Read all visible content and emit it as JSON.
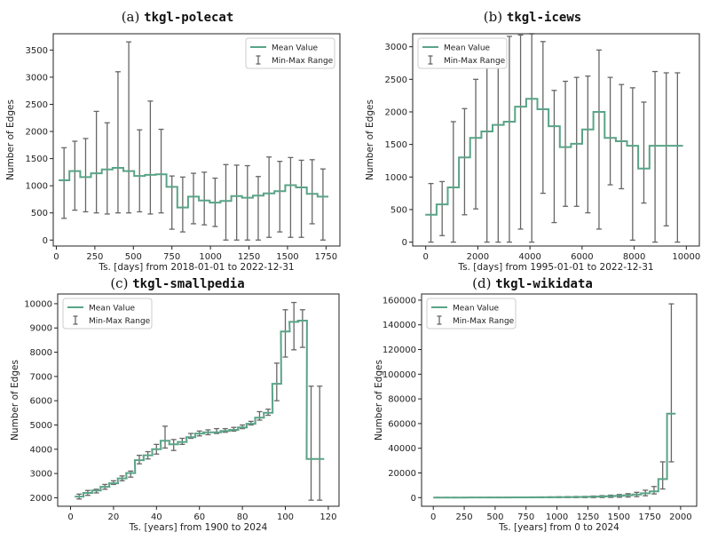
{
  "chart_data": [
    {
      "type": "line",
      "panel_label": "(a)",
      "title": "tkgl-polecat",
      "xlabel": "Ts. [days] from 2018-01-01 to 2022-12-31",
      "ylabel": "Number of Edges",
      "xlim": [
        -20,
        1840
      ],
      "ylim": [
        -110,
        3800
      ],
      "xticks": [
        0,
        250,
        500,
        750,
        1000,
        1250,
        1500,
        1750
      ],
      "yticks": [
        0,
        500,
        1000,
        1500,
        2000,
        2500,
        3000,
        3500
      ],
      "legend": [
        "Mean Value",
        "Min-Max Range"
      ],
      "legend_position": "top-right",
      "step_width": 70,
      "series": [
        {
          "name": "Mean Value",
          "x": [
            50,
            120,
            190,
            260,
            330,
            400,
            470,
            540,
            610,
            680,
            750,
            820,
            890,
            960,
            1030,
            1100,
            1170,
            1240,
            1310,
            1380,
            1450,
            1520,
            1590,
            1660,
            1730
          ],
          "values": [
            1100,
            1270,
            1160,
            1230,
            1300,
            1330,
            1270,
            1180,
            1200,
            1210,
            980,
            600,
            800,
            730,
            690,
            720,
            810,
            780,
            820,
            860,
            900,
            1010,
            970,
            850,
            800
          ]
        },
        {
          "name": "Min-Max Range",
          "x": [
            50,
            120,
            190,
            260,
            330,
            400,
            470,
            540,
            610,
            680,
            750,
            820,
            890,
            960,
            1030,
            1100,
            1170,
            1240,
            1310,
            1380,
            1450,
            1520,
            1590,
            1660,
            1730
          ],
          "min": [
            400,
            550,
            520,
            500,
            480,
            500,
            500,
            520,
            480,
            500,
            200,
            150,
            300,
            280,
            250,
            0,
            0,
            0,
            0,
            50,
            150,
            50,
            50,
            300,
            0
          ],
          "max": [
            1700,
            1820,
            1870,
            2370,
            2160,
            3100,
            3650,
            2030,
            2560,
            2040,
            1180,
            1160,
            1230,
            1250,
            1140,
            1390,
            1380,
            1370,
            1170,
            1530,
            1450,
            1520,
            1470,
            1480,
            1310
          ]
        }
      ]
    },
    {
      "type": "line",
      "panel_label": "(b)",
      "title": "tkgl-icews",
      "xlabel": "Ts. [days] from 1995-01-01 to 2022-12-31",
      "ylabel": "Number of Edges",
      "xlim": [
        -500,
        10500
      ],
      "ylim": [
        -60,
        3200
      ],
      "xticks": [
        0,
        2000,
        4000,
        6000,
        8000,
        10000
      ],
      "yticks": [
        0,
        500,
        1000,
        1500,
        2000,
        2500,
        3000
      ],
      "legend": [
        "Mean Value",
        "Min-Max Range"
      ],
      "legend_position": "top-left",
      "step_width": 430,
      "series": [
        {
          "name": "Mean Value",
          "x": [
            200,
            630,
            1060,
            1490,
            1920,
            2350,
            2780,
            3210,
            3640,
            4070,
            4500,
            4930,
            5360,
            5790,
            6220,
            6650,
            7080,
            7510,
            7940,
            8370,
            8800,
            9230,
            9660
          ],
          "values": [
            420,
            580,
            840,
            1300,
            1600,
            1700,
            1800,
            1850,
            2080,
            2200,
            2040,
            1780,
            1460,
            1510,
            1730,
            2000,
            1600,
            1550,
            1480,
            1130,
            1480,
            1480,
            1480
          ]
        },
        {
          "name": "Min-Max Range",
          "x": [
            200,
            630,
            1060,
            1490,
            1920,
            2350,
            2780,
            3210,
            3640,
            4070,
            4500,
            4930,
            5360,
            5790,
            6220,
            6650,
            7080,
            7510,
            7940,
            8370,
            8800,
            9230,
            9660
          ],
          "min": [
            0,
            100,
            0,
            420,
            510,
            0,
            0,
            0,
            200,
            0,
            750,
            300,
            550,
            550,
            450,
            200,
            880,
            820,
            30,
            600,
            0,
            250,
            0
          ],
          "max": [
            900,
            930,
            1850,
            2050,
            2500,
            2670,
            3000,
            3160,
            3180,
            3200,
            3080,
            2330,
            2470,
            2530,
            2550,
            2950,
            2530,
            2420,
            2370,
            2150,
            2620,
            2600,
            2600
          ]
        }
      ]
    },
    {
      "type": "line",
      "panel_label": "(c)",
      "title": "tkgl-smallpedia",
      "xlabel": "Ts. [years] from 1900 to 2024",
      "ylabel": "Number of Edges",
      "xlim": [
        -6,
        125
      ],
      "ylim": [
        1650,
        10400
      ],
      "xticks": [
        0,
        20,
        40,
        60,
        80,
        100,
        120
      ],
      "yticks": [
        2000,
        3000,
        4000,
        5000,
        6000,
        7000,
        8000,
        9000,
        10000
      ],
      "legend": [
        "Mean Value",
        "Min-Max Range"
      ],
      "legend_position": "top-left",
      "step_width": 4.17,
      "series": [
        {
          "name": "Mean Value",
          "x": [
            4,
            8,
            12,
            16,
            20,
            24,
            28,
            32,
            36,
            40,
            44,
            48,
            52,
            56,
            60,
            64,
            68,
            72,
            76,
            80,
            84,
            88,
            92,
            96,
            100,
            104,
            108,
            112,
            116
          ],
          "values": [
            2050,
            2200,
            2300,
            2450,
            2600,
            2800,
            3020,
            3550,
            3750,
            4000,
            4350,
            4200,
            4300,
            4500,
            4650,
            4700,
            4700,
            4750,
            4800,
            4900,
            5050,
            5300,
            5500,
            6700,
            8850,
            9250,
            9300,
            3600,
            3600
          ]
        },
        {
          "name": "Min-Max Range",
          "x": [
            4,
            8,
            12,
            16,
            20,
            24,
            28,
            32,
            36,
            40,
            44,
            48,
            52,
            56,
            60,
            64,
            68,
            72,
            76,
            80,
            84,
            88,
            92,
            96,
            100,
            104,
            108,
            112,
            116
          ],
          "min": [
            1950,
            2100,
            2200,
            2350,
            2550,
            2700,
            2850,
            3400,
            3600,
            3800,
            4050,
            3950,
            4200,
            4450,
            4550,
            4600,
            4650,
            4700,
            4750,
            4850,
            5000,
            5200,
            5400,
            6000,
            7800,
            8100,
            8200,
            1900,
            1900
          ],
          "max": [
            2150,
            2300,
            2350,
            2550,
            2700,
            2900,
            3100,
            3750,
            3900,
            4200,
            4950,
            4400,
            4450,
            4650,
            4750,
            4800,
            4850,
            4850,
            4900,
            5000,
            5150,
            5550,
            5650,
            7550,
            9750,
            10050,
            9750,
            6600,
            6600
          ]
        }
      ]
    },
    {
      "type": "line",
      "panel_label": "(d)",
      "title": "tkgl-wikidata",
      "xlabel": "Ts. [years] from 0 to 2024",
      "ylabel": "Number of Edges",
      "xlim": [
        -95,
        2130
      ],
      "ylim": [
        -7000,
        165000
      ],
      "xticks": [
        0,
        250,
        500,
        750,
        1000,
        1250,
        1500,
        1750,
        2000
      ],
      "yticks": [
        0,
        20000,
        40000,
        60000,
        80000,
        100000,
        120000,
        140000,
        160000
      ],
      "legend": [
        "Mean Value",
        "Min-Max Range"
      ],
      "legend_position": "top-left",
      "step_width": 70,
      "series": [
        {
          "name": "Mean Value",
          "x": [
            35,
            105,
            175,
            245,
            315,
            385,
            455,
            525,
            595,
            665,
            735,
            805,
            875,
            945,
            1015,
            1085,
            1155,
            1225,
            1295,
            1365,
            1435,
            1505,
            1575,
            1645,
            1715,
            1785,
            1855,
            1925
          ],
          "values": [
            50,
            60,
            70,
            80,
            90,
            100,
            120,
            140,
            160,
            180,
            200,
            230,
            260,
            300,
            350,
            400,
            480,
            560,
            700,
            900,
            1200,
            1500,
            1900,
            2500,
            3500,
            5000,
            15000,
            68000
          ]
        },
        {
          "name": "Min-Max Range",
          "x": [
            35,
            105,
            175,
            245,
            315,
            385,
            455,
            525,
            595,
            665,
            735,
            805,
            875,
            945,
            1015,
            1085,
            1155,
            1225,
            1295,
            1365,
            1435,
            1505,
            1575,
            1645,
            1715,
            1785,
            1855,
            1925
          ],
          "min": [
            0,
            0,
            0,
            0,
            0,
            0,
            0,
            0,
            0,
            0,
            0,
            0,
            0,
            0,
            0,
            0,
            0,
            0,
            0,
            100,
            200,
            300,
            500,
            800,
            1500,
            3000,
            7000,
            29000
          ],
          "max": [
            200,
            200,
            200,
            200,
            200,
            200,
            300,
            300,
            300,
            400,
            400,
            500,
            500,
            600,
            700,
            800,
            900,
            1000,
            1300,
            1600,
            2000,
            2500,
            3200,
            4300,
            6000,
            9000,
            29000,
            157000
          ]
        }
      ]
    }
  ],
  "colors": {
    "mean_line": "#5aa487",
    "error_bar": "#666666",
    "axis": "#222222",
    "background": "#ffffff"
  }
}
